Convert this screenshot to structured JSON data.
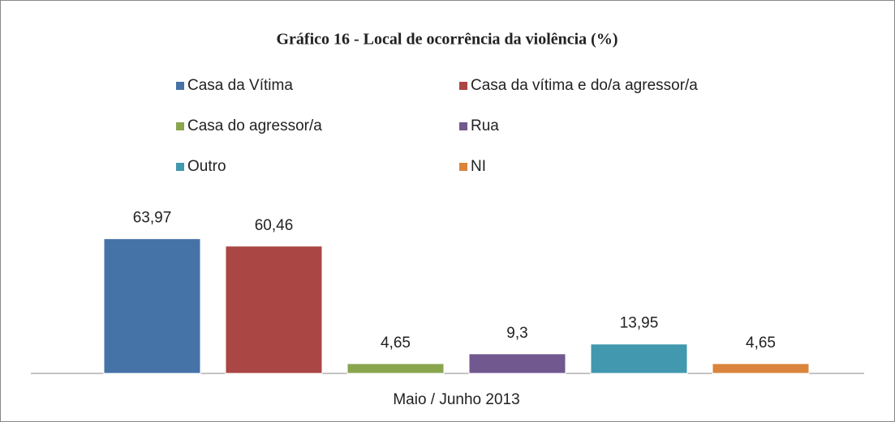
{
  "chart_data": {
    "type": "bar",
    "title": "Gráfico 16 - Local de ocorrência da violência (%)",
    "categories": [
      "Maio / Junho 2013"
    ],
    "series": [
      {
        "name": "Casa da Vítima",
        "color": "#4572a7",
        "values": [
          63.97
        ],
        "value_labels": [
          "63,97"
        ]
      },
      {
        "name": "Casa da vítima e do/a agressor/a",
        "color": "#aa4643",
        "values": [
          60.46
        ],
        "value_labels": [
          "60,46"
        ]
      },
      {
        "name": "Casa do agressor/a",
        "color": "#89a54e",
        "values": [
          4.65
        ],
        "value_labels": [
          "4,65"
        ]
      },
      {
        "name": "Rua",
        "color": "#71588f",
        "values": [
          9.3
        ],
        "value_labels": [
          "9,3"
        ]
      },
      {
        "name": "Outro",
        "color": "#4198af",
        "values": [
          13.95
        ],
        "value_labels": [
          "13,95"
        ]
      },
      {
        "name": "NI",
        "color": "#db843d",
        "values": [
          4.65
        ],
        "value_labels": [
          "4,65"
        ]
      }
    ],
    "ylim": [
      0,
      70
    ]
  }
}
